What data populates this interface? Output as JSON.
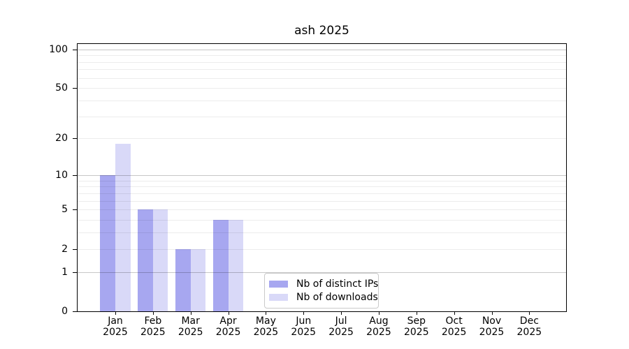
{
  "chart_data": {
    "type": "bar",
    "title": "ash 2025",
    "categories": [
      "Jan",
      "Feb",
      "Mar",
      "Apr",
      "May",
      "Jun",
      "Jul",
      "Aug",
      "Sep",
      "Oct",
      "Nov",
      "Dec"
    ],
    "year_label": "2025",
    "series": [
      {
        "name": "Nb of distinct IPs",
        "color": "#a7a7f0",
        "values": [
          10,
          5,
          2,
          4,
          0,
          0,
          0,
          0,
          0,
          0,
          0,
          0
        ]
      },
      {
        "name": "Nb of downloads",
        "color": "#d9d9f8",
        "values": [
          18,
          5,
          2,
          4,
          0,
          0,
          0,
          0,
          0,
          0,
          0,
          0
        ]
      }
    ],
    "yscale": "log1p",
    "ylim": [
      0,
      111
    ],
    "ytick_labels": [
      "100",
      "50",
      "20",
      "10",
      "5",
      "2",
      "1",
      "0"
    ],
    "ytick_values": [
      100,
      50,
      20,
      10,
      5,
      2,
      1,
      0
    ],
    "major_gridlines": [
      1,
      10,
      100
    ],
    "minor_gridlines": [
      2,
      3,
      4,
      5,
      6,
      7,
      8,
      9,
      20,
      30,
      40,
      50,
      60,
      70,
      80,
      90
    ],
    "grid": true,
    "legend_position": "lower-center"
  }
}
